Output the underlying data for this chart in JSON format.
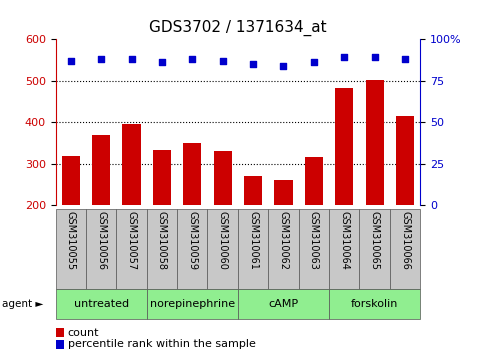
{
  "title": "GDS3702 / 1371634_at",
  "samples": [
    "GSM310055",
    "GSM310056",
    "GSM310057",
    "GSM310058",
    "GSM310059",
    "GSM310060",
    "GSM310061",
    "GSM310062",
    "GSM310063",
    "GSM310064",
    "GSM310065",
    "GSM310066"
  ],
  "counts": [
    318,
    370,
    395,
    332,
    351,
    330,
    270,
    262,
    315,
    482,
    502,
    415
  ],
  "percentile_ranks": [
    87,
    88,
    88,
    86,
    88,
    87,
    85,
    84,
    86,
    89,
    89,
    88
  ],
  "bar_color": "#cc0000",
  "dot_color": "#0000cc",
  "ylim_left": [
    200,
    600
  ],
  "ylim_right": [
    0,
    100
  ],
  "yticks_left": [
    200,
    300,
    400,
    500,
    600
  ],
  "yticks_right": [
    0,
    25,
    50,
    75,
    100
  ],
  "ytick_labels_right": [
    "0",
    "25",
    "50",
    "75",
    "100%"
  ],
  "grid_values": [
    300,
    400,
    500
  ],
  "agents": [
    {
      "label": "untreated",
      "start": 0,
      "end": 3
    },
    {
      "label": "norepinephrine",
      "start": 3,
      "end": 6
    },
    {
      "label": "cAMP",
      "start": 6,
      "end": 9
    },
    {
      "label": "forskolin",
      "start": 9,
      "end": 12
    }
  ],
  "agent_row_color": "#90EE90",
  "sample_row_color": "#c8c8c8",
  "legend_count_color": "#cc0000",
  "legend_dot_color": "#0000cc",
  "legend_count_label": "count",
  "legend_dot_label": "percentile rank within the sample",
  "title_fontsize": 11,
  "tick_fontsize": 8,
  "label_fontsize": 7,
  "axis_left_color": "#cc0000",
  "axis_right_color": "#0000cc"
}
